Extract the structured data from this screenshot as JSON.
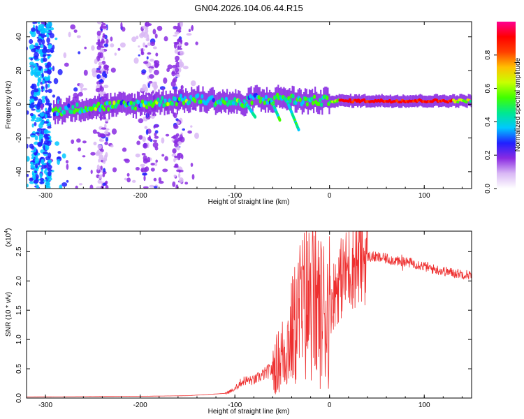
{
  "title": "GN04.2026.104.06.44.R15",
  "chart_data": [
    {
      "type": "heatmap",
      "name": "spectrogram",
      "xlabel": "Height of straight line (km)",
      "ylabel": "Frequency (Hz)",
      "xlim": [
        -320,
        150
      ],
      "ylim": [
        -50,
        49
      ],
      "xticks": [
        -300,
        -200,
        -100,
        0,
        100
      ],
      "yticks": [
        -40,
        -20,
        0,
        20,
        40
      ],
      "colorbar": {
        "label": "Normalized spectral amplitude",
        "range": [
          0,
          1
        ],
        "ticks": [
          0.0,
          0.2,
          0.4,
          0.6,
          0.8
        ],
        "tick_labels": [
          "0.0",
          "0.2",
          "0.4",
          "0.6",
          "0.8"
        ],
        "colors": [
          "#ffffff",
          "#d9b8f5",
          "#8a2be2",
          "#2020ff",
          "#00c8ff",
          "#00e890",
          "#40ff00",
          "#c8ff00",
          "#ffc000",
          "#ff4000",
          "#ff0000",
          "#ff0090"
        ]
      },
      "ridge": {
        "x": [
          -290,
          -260,
          -230,
          -200,
          -170,
          -140,
          -120,
          -100,
          -90,
          -80,
          -70,
          -60,
          -50,
          -40,
          -30,
          -10,
          0,
          50,
          100,
          150
        ],
        "y": [
          -4,
          -2,
          -1,
          0,
          2,
          3,
          2,
          1,
          0,
          4,
          2,
          3,
          4,
          3,
          2,
          2,
          2,
          2,
          2,
          2
        ]
      }
    },
    {
      "type": "line",
      "name": "snr",
      "xlabel": "Height of straight line (km)",
      "ylabel": "SNR (10 * v/v)",
      "scale_label": "(x10",
      "scale_exp": "4",
      "scale_close": ")",
      "xlim": [
        -320,
        150
      ],
      "ylim": [
        0,
        2.85
      ],
      "xticks": [
        -300,
        -200,
        -100,
        0,
        100
      ],
      "yticks": [
        0.0,
        0.5,
        1.0,
        1.5,
        2.0,
        2.5
      ],
      "ytick_labels": [
        "0.0",
        "0.5",
        "1.0",
        "1.5",
        "2.0",
        "2.5"
      ],
      "color": "#ee3030",
      "series": [
        {
          "name": "SNR envelope",
          "x": [
            -320,
            -200,
            -150,
            -110,
            -100,
            -95,
            -90,
            -85,
            -80,
            -75,
            -70,
            -65,
            -60,
            -55,
            -50,
            -45,
            -40,
            -35,
            -30,
            -25,
            -20,
            -15,
            -10,
            -5,
            0,
            5,
            10,
            15,
            20,
            25,
            30,
            35,
            40,
            50,
            60,
            70,
            75,
            77,
            80,
            90,
            100,
            110,
            120,
            130,
            140,
            150
          ],
          "y": [
            0.02,
            0.03,
            0.04,
            0.08,
            0.15,
            0.25,
            0.3,
            0.3,
            0.3,
            0.35,
            0.4,
            0.45,
            0.5,
            0.6,
            0.75,
            0.9,
            1.1,
            1.3,
            1.5,
            1.6,
            1.65,
            1.6,
            1.5,
            1.5,
            1.6,
            1.8,
            2.0,
            2.1,
            2.2,
            2.3,
            2.35,
            2.4,
            2.42,
            2.4,
            2.38,
            2.35,
            2.3,
            2.4,
            2.32,
            2.3,
            2.25,
            2.2,
            2.17,
            2.14,
            2.12,
            2.1
          ]
        }
      ]
    }
  ]
}
